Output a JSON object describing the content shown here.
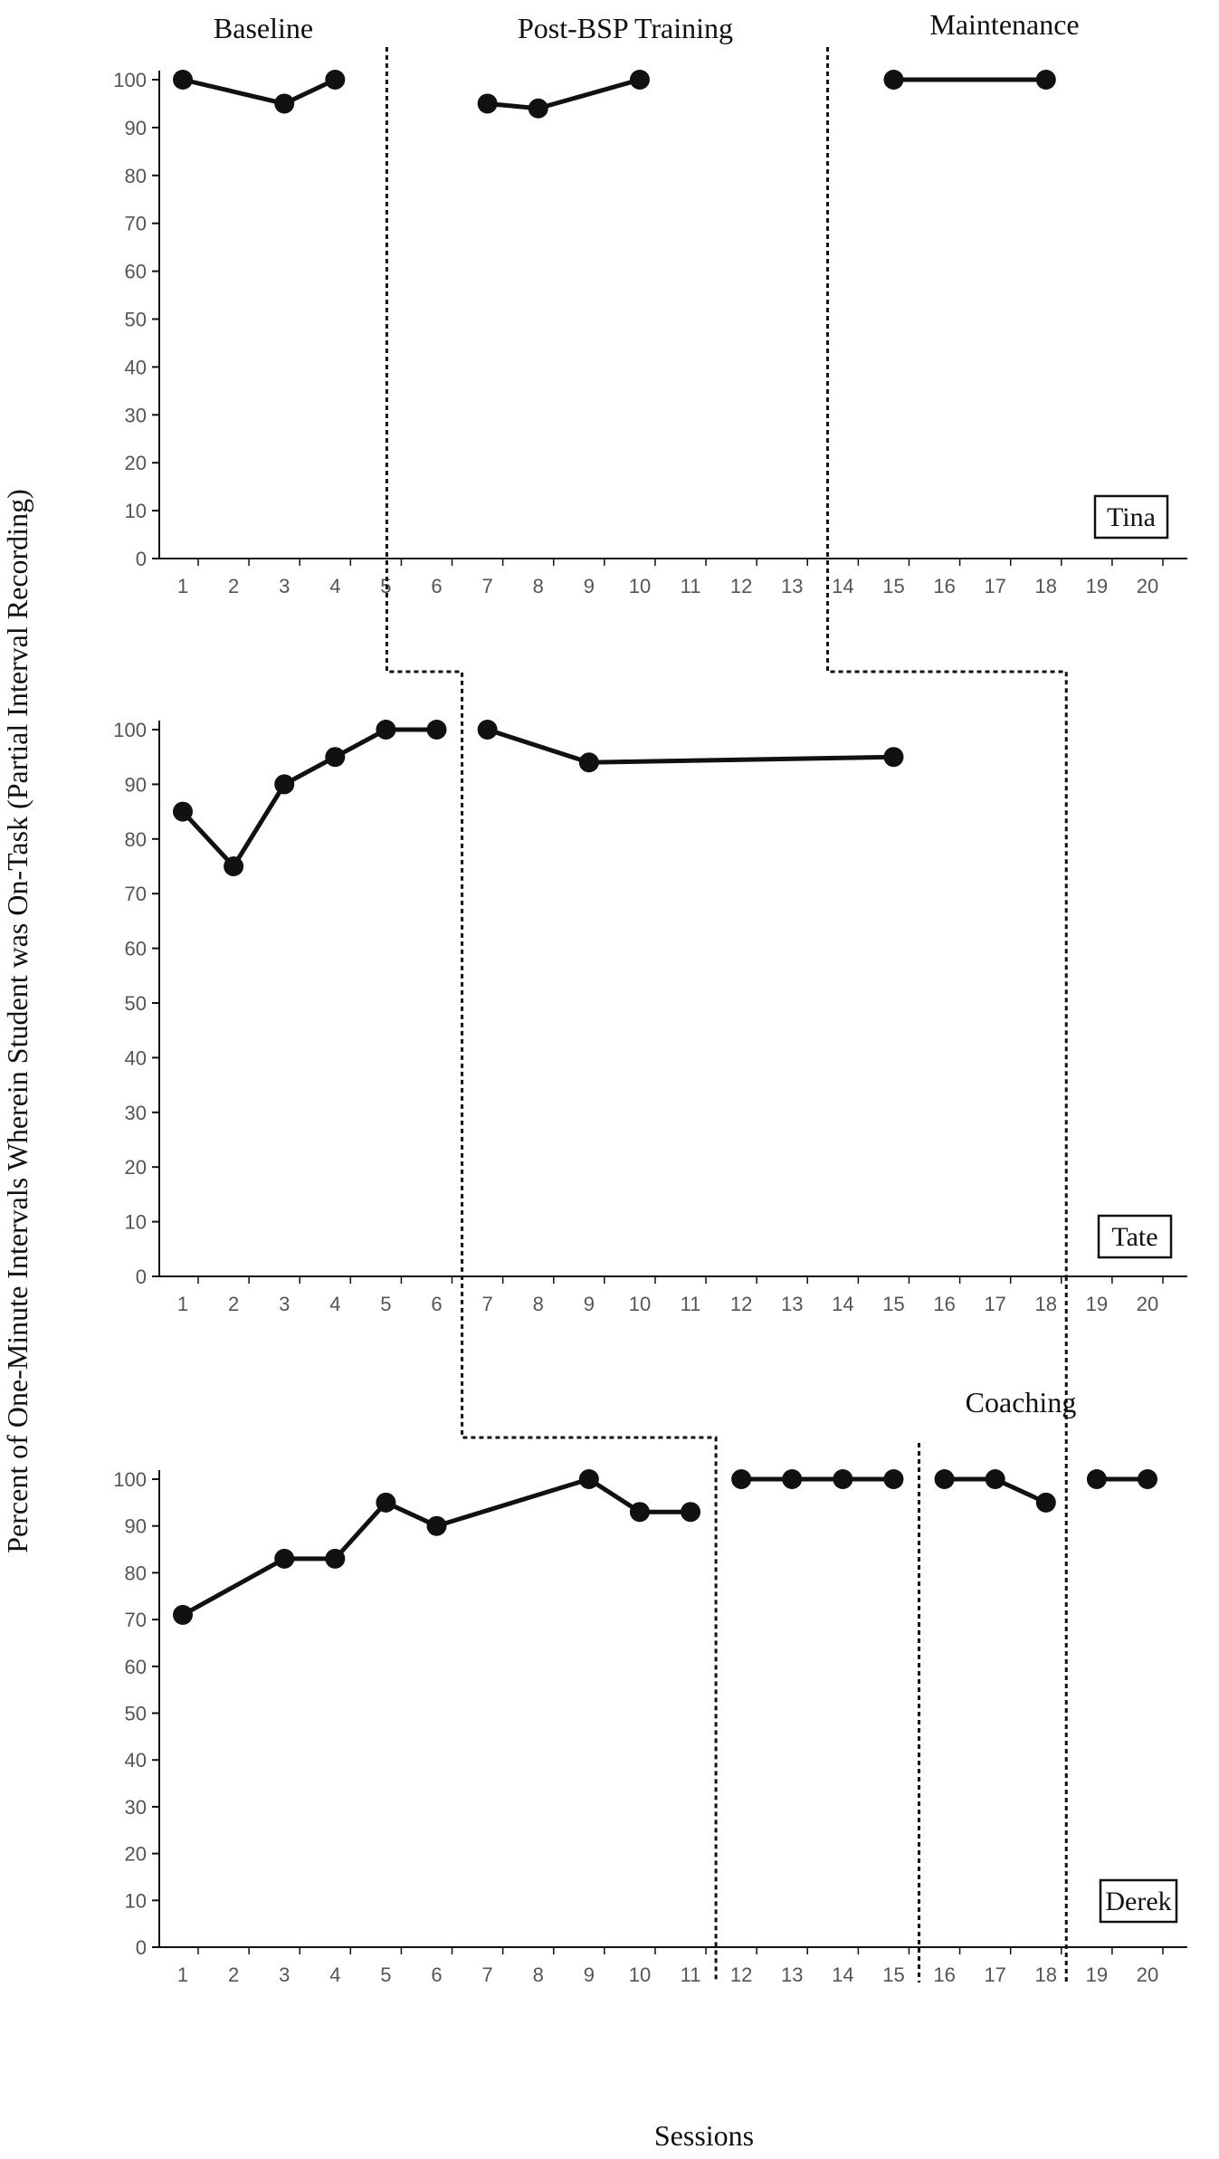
{
  "chart_data": {
    "type": "line",
    "ylabel": "Percent of One-Minute Intervals Wherein Student was On-Task (Partial Interval Recording)",
    "xlabel": "Sessions",
    "phase_labels": [
      "Baseline",
      "Post-BSP Training",
      "Maintenance",
      "Coaching"
    ],
    "x_ticks": [
      "1",
      "2",
      "3",
      "4",
      "5",
      "6",
      "7",
      "8",
      "9",
      "10",
      "11",
      "12",
      "13",
      "14",
      "15",
      "16",
      "17",
      "18",
      "19",
      "20"
    ],
    "y_ticks": [
      "0",
      "10",
      "20",
      "30",
      "40",
      "50",
      "60",
      "70",
      "80",
      "90",
      "100"
    ],
    "ylim": [
      0,
      100
    ],
    "xlim": [
      1,
      20
    ],
    "grid": false,
    "panels": [
      {
        "name": "Tina",
        "segments": [
          [
            [
              1,
              100
            ],
            [
              3,
              95
            ],
            [
              4,
              100
            ]
          ],
          [
            [
              7,
              95
            ],
            [
              8,
              94
            ],
            [
              10,
              100
            ]
          ],
          [
            [
              15,
              100
            ],
            [
              18,
              100
            ]
          ]
        ]
      },
      {
        "name": "Tate",
        "segments": [
          [
            [
              1,
              85
            ],
            [
              2,
              75
            ],
            [
              3,
              90
            ],
            [
              4,
              95
            ],
            [
              5,
              100
            ],
            [
              6,
              100
            ]
          ],
          [
            [
              7,
              100
            ],
            [
              9,
              94
            ],
            [
              15,
              95
            ]
          ]
        ]
      },
      {
        "name": "Derek",
        "segments": [
          [
            [
              1,
              71
            ],
            [
              3,
              83
            ],
            [
              4,
              83
            ],
            [
              5,
              95
            ],
            [
              6,
              90
            ],
            [
              9,
              100
            ],
            [
              10,
              93
            ],
            [
              11,
              93
            ]
          ],
          [
            [
              12,
              100
            ],
            [
              13,
              100
            ],
            [
              14,
              100
            ],
            [
              15,
              100
            ]
          ],
          [
            [
              16,
              100
            ],
            [
              17,
              100
            ],
            [
              18,
              95
            ]
          ],
          [
            [
              19,
              100
            ],
            [
              20,
              100
            ]
          ]
        ]
      }
    ],
    "phase_change_lines": [
      {
        "panel_x_positions": [
          5.0,
          6.5,
          11.5
        ]
      },
      {
        "panel_x_positions": [
          13.7,
          18.4,
          15.5
        ]
      },
      {
        "panel_x_positions": [
          null,
          null,
          18.4
        ]
      }
    ]
  }
}
